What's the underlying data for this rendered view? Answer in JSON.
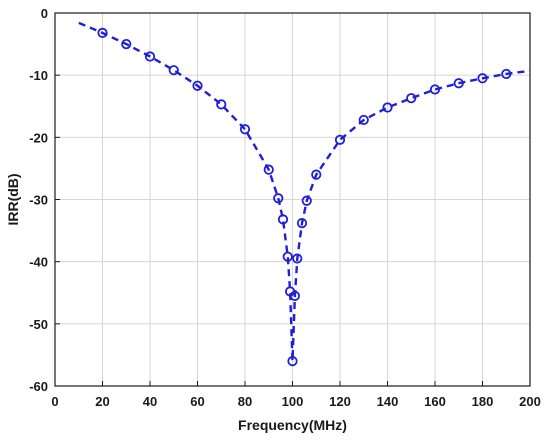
{
  "chart_data": {
    "type": "line",
    "title": "",
    "xlabel": "Frequency(MHz)",
    "ylabel": "IRR(dB)",
    "xlim": [
      0,
      200
    ],
    "ylim": [
      -60,
      0
    ],
    "xticks": [
      0,
      20,
      40,
      60,
      80,
      100,
      120,
      140,
      160,
      180,
      200
    ],
    "yticks": [
      0,
      -10,
      -20,
      -30,
      -40,
      -50,
      -60
    ],
    "grid": true,
    "legend": "none",
    "series": [
      {
        "color": "#1f1fd6",
        "line_style": "dashed",
        "marker": "circle",
        "curve_x": [
          10,
          20,
          30,
          40,
          50,
          60,
          70,
          80,
          90,
          94,
          96,
          98,
          99,
          100,
          101,
          102,
          104,
          106,
          110,
          120,
          130,
          140,
          150,
          160,
          170,
          180,
          190,
          200
        ],
        "curve_y": [
          -1.6,
          -3.2,
          -5.0,
          -7.0,
          -9.2,
          -11.7,
          -14.7,
          -18.7,
          -25.2,
          -29.8,
          -33.2,
          -39.2,
          -44.8,
          -56.0,
          -45.5,
          -39.5,
          -33.8,
          -30.2,
          -26.0,
          -20.4,
          -17.2,
          -15.2,
          -13.7,
          -12.3,
          -11.3,
          -10.5,
          -9.8,
          -9.3
        ],
        "marker_x": [
          20,
          30,
          40,
          50,
          60,
          70,
          80,
          90,
          94,
          96,
          98,
          99,
          100,
          101,
          102,
          104,
          106,
          110,
          120,
          130,
          140,
          150,
          160,
          170,
          180,
          190
        ],
        "marker_y": [
          -3.2,
          -5.0,
          -7.0,
          -9.2,
          -11.7,
          -14.7,
          -18.7,
          -25.2,
          -29.8,
          -33.2,
          -39.2,
          -44.8,
          -56.0,
          -45.5,
          -39.5,
          -33.8,
          -30.2,
          -26.0,
          -20.4,
          -17.2,
          -15.2,
          -13.7,
          -12.3,
          -11.3,
          -10.5,
          -9.8
        ]
      }
    ]
  }
}
